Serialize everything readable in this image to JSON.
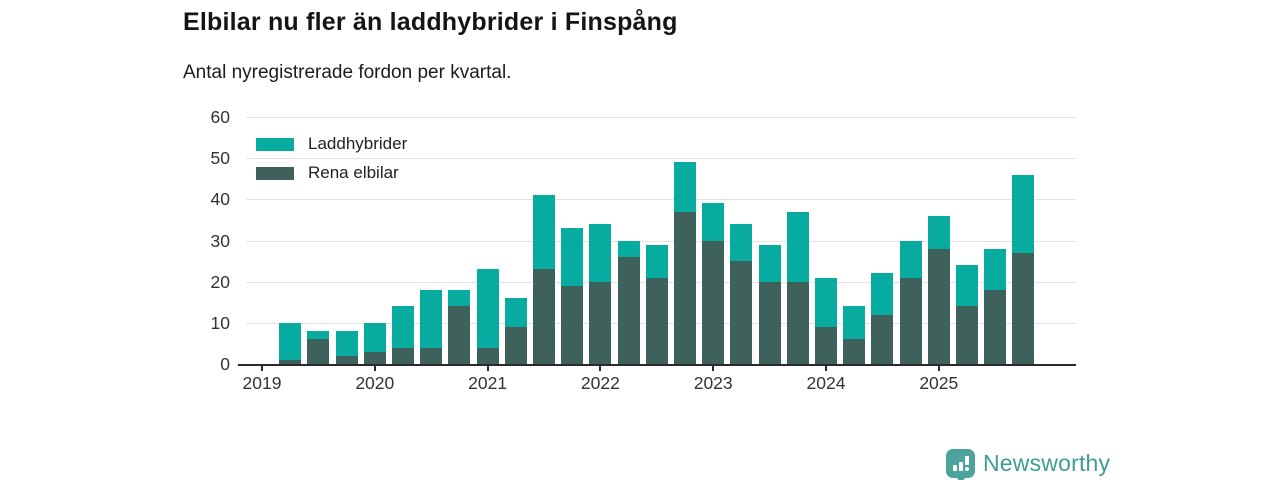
{
  "title": "Elbilar nu fler än laddhybrider i Finspång",
  "subtitle": "Antal nyregistrerade fordon per kvartal.",
  "legend": {
    "items": [
      {
        "label": "Laddhybrider",
        "color": "#07ab9f"
      },
      {
        "label": "Rena elbilar",
        "color": "#3f615c"
      }
    ]
  },
  "colors": {
    "laddhybrider": "#07ab9f",
    "rena_elbilar": "#3f615c",
    "gridline": "#e3e3e3",
    "axis": "#2b2b2b",
    "brand_teal": "#4ba39b",
    "wordmark_teal": "#3f9c94"
  },
  "chart_data": {
    "type": "bar",
    "stacked": true,
    "title": "Elbilar nu fler än laddhybrider i Finspång",
    "subtitle": "Antal nyregistrerade fordon per kvartal.",
    "xlabel": "",
    "ylabel": "",
    "ylim": [
      0,
      60
    ],
    "yticks": [
      0,
      10,
      20,
      30,
      40,
      50,
      60
    ],
    "grid": true,
    "legend_position": "top-left",
    "categories": [
      "2019 Q1",
      "2019 Q2",
      "2019 Q3",
      "2019 Q4",
      "2020 Q1",
      "2020 Q2",
      "2020 Q3",
      "2020 Q4",
      "2021 Q1",
      "2021 Q2",
      "2021 Q3",
      "2021 Q4",
      "2022 Q1",
      "2022 Q2",
      "2022 Q3",
      "2022 Q4",
      "2023 Q1",
      "2023 Q2",
      "2023 Q3",
      "2023 Q4",
      "2024 Q1",
      "2024 Q2",
      "2024 Q3",
      "2024 Q4",
      "2025 Q1",
      "2025 Q2",
      "2025 Q3",
      "2025 Q4"
    ],
    "xticks": [
      "2019",
      "2020",
      "2021",
      "2022",
      "2023",
      "2024",
      "2025"
    ],
    "series": [
      {
        "name": "Rena elbilar",
        "color": "#3f615c",
        "values": [
          0,
          1,
          6,
          2,
          3,
          4,
          4,
          14,
          4,
          9,
          23,
          19,
          20,
          26,
          21,
          37,
          30,
          25,
          20,
          20,
          9,
          6,
          12,
          21,
          28,
          14,
          18,
          27
        ]
      },
      {
        "name": "Laddhybrider",
        "color": "#07ab9f",
        "values": [
          0,
          9,
          2,
          6,
          7,
          10,
          14,
          4,
          19,
          7,
          18,
          14,
          14,
          4,
          8,
          12,
          9,
          9,
          9,
          17,
          12,
          8,
          10,
          9,
          8,
          10,
          10,
          19
        ]
      }
    ]
  },
  "branding": {
    "wordmark": "Newsworthy",
    "icon": "newsworthy-pin-bar-chart-icon"
  }
}
